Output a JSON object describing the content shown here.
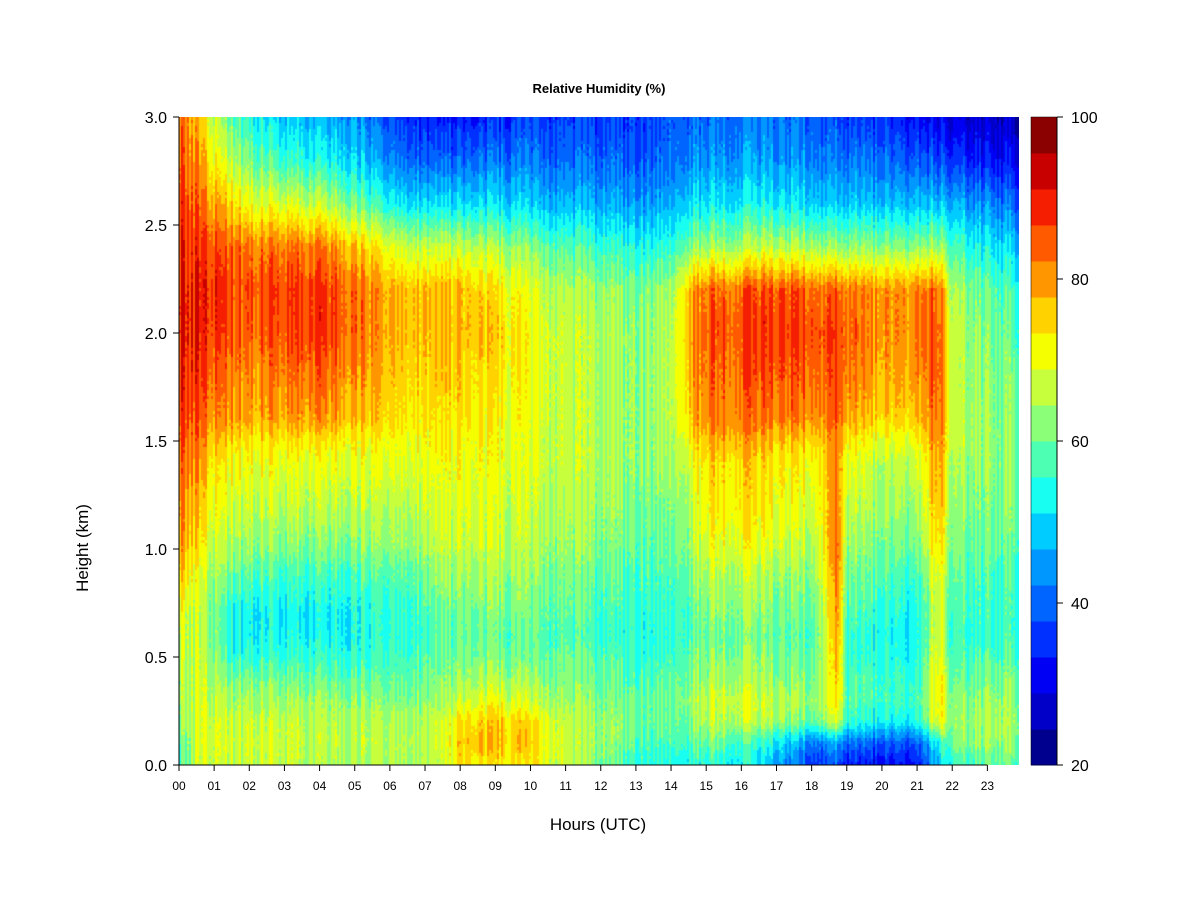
{
  "chart_data": {
    "type": "heatmap",
    "title": "Relative Humidity (%)",
    "xlabel": "Hours (UTC)",
    "ylabel": "Height (km)",
    "xlim": [
      0,
      23.9
    ],
    "ylim": [
      0.0,
      3.0
    ],
    "x_ticks": [
      "00",
      "01",
      "02",
      "03",
      "04",
      "05",
      "06",
      "07",
      "08",
      "09",
      "10",
      "11",
      "12",
      "13",
      "14",
      "15",
      "16",
      "17",
      "18",
      "19",
      "20",
      "21",
      "22",
      "23"
    ],
    "y_ticks": [
      "0.0",
      "0.5",
      "1.0",
      "1.5",
      "2.0",
      "2.5",
      "3.0"
    ],
    "colorbar": {
      "range": [
        20,
        100
      ],
      "step": 5,
      "tick_labels": [
        "20",
        "40",
        "60",
        "80",
        "100"
      ],
      "colors": [
        "#00008f",
        "#0000c8",
        "#0000f5",
        "#0030ff",
        "#0064ff",
        "#0098ff",
        "#00ccff",
        "#18fff2",
        "#4cffb2",
        "#8cff78",
        "#c8ff3c",
        "#f5ff00",
        "#ffd200",
        "#ff9600",
        "#ff5a00",
        "#f51e00",
        "#c80000",
        "#8b0000"
      ]
    },
    "x_hours": [
      0,
      0.5,
      1,
      1.5,
      2,
      3,
      4,
      5,
      6,
      7,
      7.5,
      8,
      9,
      10,
      11,
      12,
      13,
      14,
      14.5,
      15,
      16,
      17,
      18,
      18.75,
      19,
      20,
      21,
      21.6,
      22,
      23,
      23.9
    ],
    "y_heights": [
      0,
      0.1,
      0.2,
      0.3,
      0.4,
      0.5,
      0.6,
      0.7,
      0.8,
      0.9,
      1.0,
      1.2,
      1.4,
      1.5,
      1.6,
      1.8,
      2.0,
      2.2,
      2.4,
      2.6,
      2.8,
      3.0
    ],
    "rh_grid": [
      [
        62,
        72,
        74,
        72,
        73,
        72,
        70,
        70,
        71,
        70,
        71,
        80,
        79,
        78,
        71,
        66,
        60,
        57,
        58,
        60,
        57,
        50,
        38,
        40,
        35,
        32,
        35,
        52,
        60,
        63,
        64
      ],
      [
        64,
        73,
        75,
        74,
        74,
        73,
        72,
        72,
        72,
        72,
        73,
        83,
        84,
        82,
        72,
        68,
        63,
        60,
        62,
        66,
        62,
        56,
        45,
        48,
        43,
        40,
        42,
        58,
        66,
        68,
        68
      ],
      [
        68,
        74,
        74,
        73,
        73,
        72,
        71,
        71,
        71,
        71,
        72,
        80,
        82,
        80,
        71,
        68,
        65,
        63,
        66,
        72,
        72,
        70,
        64,
        74,
        60,
        55,
        58,
        78,
        68,
        70,
        69
      ],
      [
        70,
        74,
        72,
        70,
        70,
        69,
        69,
        68,
        68,
        68,
        69,
        73,
        76,
        72,
        68,
        66,
        65,
        64,
        68,
        74,
        74,
        72,
        68,
        80,
        63,
        60,
        62,
        80,
        67,
        68,
        68
      ],
      [
        70,
        74,
        70,
        66,
        66,
        65,
        64,
        64,
        64,
        65,
        66,
        68,
        70,
        68,
        66,
        64,
        62,
        62,
        66,
        70,
        70,
        68,
        66,
        82,
        62,
        60,
        60,
        80,
        64,
        66,
        66
      ],
      [
        72,
        73,
        68,
        60,
        60,
        60,
        60,
        60,
        62,
        63,
        64,
        66,
        66,
        64,
        64,
        62,
        60,
        60,
        64,
        68,
        68,
        66,
        64,
        84,
        60,
        58,
        58,
        78,
        62,
        62,
        62
      ],
      [
        74,
        72,
        66,
        58,
        57,
        57,
        57,
        58,
        60,
        61,
        62,
        64,
        64,
        63,
        62,
        60,
        59,
        58,
        62,
        66,
        66,
        64,
        62,
        86,
        60,
        56,
        57,
        76,
        60,
        60,
        60
      ],
      [
        76,
        72,
        66,
        58,
        56,
        56,
        56,
        58,
        60,
        62,
        64,
        65,
        66,
        65,
        63,
        61,
        60,
        59,
        62,
        68,
        68,
        66,
        64,
        88,
        62,
        58,
        58,
        76,
        62,
        60,
        60
      ],
      [
        80,
        74,
        67,
        62,
        60,
        59,
        59,
        60,
        62,
        64,
        66,
        67,
        68,
        66,
        64,
        62,
        61,
        60,
        64,
        70,
        70,
        68,
        66,
        88,
        64,
        60,
        60,
        76,
        63,
        61,
        61
      ],
      [
        84,
        76,
        70,
        66,
        64,
        62,
        62,
        63,
        64,
        66,
        68,
        69,
        70,
        68,
        66,
        64,
        62,
        61,
        66,
        72,
        72,
        70,
        68,
        90,
        66,
        62,
        62,
        78,
        64,
        62,
        62
      ],
      [
        87,
        80,
        72,
        70,
        68,
        66,
        66,
        67,
        68,
        70,
        71,
        72,
        72,
        70,
        68,
        66,
        64,
        63,
        68,
        76,
        76,
        74,
        70,
        92,
        68,
        64,
        66,
        82,
        66,
        64,
        64
      ],
      [
        90,
        84,
        77,
        74,
        73,
        72,
        72,
        72,
        72,
        73,
        74,
        75,
        74,
        72,
        70,
        68,
        66,
        65,
        70,
        80,
        80,
        78,
        74,
        90,
        72,
        68,
        70,
        86,
        68,
        66,
        66
      ],
      [
        92,
        88,
        80,
        78,
        77,
        76,
        76,
        76,
        76,
        76,
        76,
        77,
        76,
        74,
        72,
        70,
        68,
        68,
        74,
        82,
        82,
        80,
        78,
        88,
        76,
        70,
        74,
        88,
        70,
        68,
        67
      ],
      [
        94,
        90,
        84,
        82,
        80,
        80,
        80,
        79,
        78,
        78,
        78,
        78,
        76,
        74,
        72,
        70,
        68,
        69,
        78,
        86,
        86,
        84,
        82,
        90,
        80,
        74,
        78,
        90,
        72,
        68,
        67
      ],
      [
        96,
        93,
        88,
        88,
        86,
        86,
        88,
        84,
        82,
        80,
        80,
        80,
        78,
        75,
        72,
        70,
        68,
        70,
        82,
        90,
        90,
        90,
        88,
        92,
        86,
        80,
        84,
        92,
        72,
        68,
        66
      ],
      [
        98,
        96,
        92,
        90,
        88,
        90,
        92,
        88,
        84,
        82,
        82,
        82,
        80,
        76,
        72,
        70,
        68,
        70,
        84,
        92,
        92,
        94,
        92,
        94,
        90,
        84,
        88,
        94,
        72,
        67,
        65
      ],
      [
        99,
        98,
        96,
        94,
        92,
        94,
        96,
        92,
        86,
        84,
        84,
        84,
        82,
        76,
        72,
        70,
        68,
        70,
        86,
        94,
        94,
        96,
        94,
        95,
        92,
        86,
        90,
        94,
        72,
        66,
        63
      ],
      [
        99,
        98,
        97,
        95,
        94,
        95,
        96,
        92,
        86,
        84,
        84,
        84,
        80,
        74,
        70,
        68,
        66,
        68,
        84,
        92,
        92,
        94,
        92,
        92,
        90,
        86,
        90,
        92,
        70,
        64,
        60
      ],
      [
        98,
        96,
        94,
        92,
        90,
        90,
        90,
        84,
        76,
        72,
        72,
        72,
        70,
        66,
        62,
        60,
        58,
        58,
        66,
        70,
        70,
        72,
        70,
        68,
        68,
        66,
        68,
        70,
        62,
        56,
        52
      ],
      [
        96,
        92,
        86,
        82,
        76,
        74,
        72,
        66,
        58,
        54,
        54,
        54,
        54,
        52,
        50,
        49,
        48,
        48,
        54,
        56,
        56,
        56,
        54,
        52,
        52,
        50,
        52,
        52,
        50,
        46,
        42
      ],
      [
        94,
        88,
        78,
        72,
        66,
        60,
        58,
        54,
        46,
        42,
        42,
        42,
        44,
        44,
        42,
        42,
        41,
        42,
        46,
        48,
        48,
        48,
        46,
        44,
        44,
        42,
        42,
        40,
        38,
        34,
        32
      ],
      [
        92,
        84,
        72,
        64,
        58,
        52,
        50,
        48,
        40,
        36,
        34,
        34,
        36,
        38,
        38,
        38,
        38,
        40,
        42,
        44,
        44,
        44,
        42,
        40,
        38,
        36,
        34,
        32,
        30,
        28,
        26
      ]
    ]
  }
}
